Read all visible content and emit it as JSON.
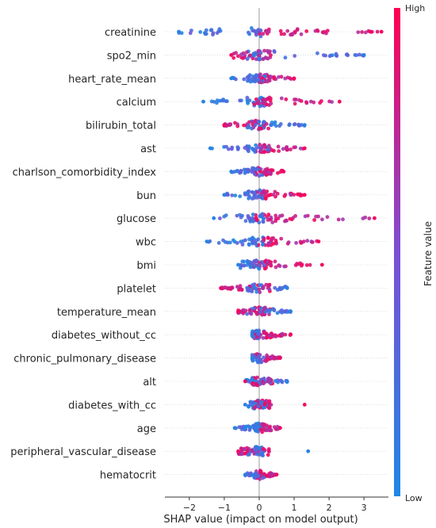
{
  "chart_data": {
    "type": "scatter",
    "xlabel": "SHAP value (impact on model output)",
    "xlim": [
      -2.7,
      3.7
    ],
    "xticks": [
      -2,
      -1,
      0,
      1,
      2,
      3
    ],
    "colorbar": {
      "label": "Feature value",
      "high": "High",
      "low": "Low",
      "low_color": "#1e88e5",
      "high_color": "#ff0052"
    },
    "features": [
      {
        "name": "creatinine",
        "min": -2.3,
        "max": 3.5,
        "low_range": [
          -2.3,
          -1.1
        ],
        "high_range": [
          0.6,
          3.5
        ],
        "skew": 0.3
      },
      {
        "name": "spo2_min",
        "min": -0.8,
        "max": 3.0,
        "low_range": [
          0.3,
          3.0
        ],
        "high_range": [
          -0.8,
          0.3
        ],
        "skew": 0.4
      },
      {
        "name": "heart_rate_mean",
        "min": -0.8,
        "max": 1.0,
        "low_range": [
          -0.8,
          0.2
        ],
        "high_range": [
          0.0,
          1.0
        ],
        "skew": 0.2
      },
      {
        "name": "calcium",
        "min": -1.6,
        "max": 2.3,
        "low_range": [
          -1.6,
          0.1
        ],
        "high_range": [
          -0.1,
          2.3
        ],
        "skew": 0.2
      },
      {
        "name": "bilirubin_total",
        "min": -1.0,
        "max": 1.3,
        "low_range": [
          0.0,
          1.3
        ],
        "high_range": [
          -1.0,
          0.0
        ],
        "skew": 0.0
      },
      {
        "name": "ast",
        "min": -1.4,
        "max": 1.3,
        "low_range": [
          -1.4,
          0.3
        ],
        "high_range": [
          0.0,
          1.3
        ],
        "skew": 0.1
      },
      {
        "name": "charlson_comorbidity_index",
        "min": -0.8,
        "max": 0.7,
        "low_range": [
          -0.8,
          -0.1
        ],
        "high_range": [
          0.1,
          0.7
        ],
        "skew": 0.0
      },
      {
        "name": "bun",
        "min": -1.0,
        "max": 1.3,
        "low_range": [
          -1.0,
          0.1
        ],
        "high_range": [
          0.1,
          1.3
        ],
        "skew": 0.0
      },
      {
        "name": "glucose",
        "min": -1.3,
        "max": 3.3,
        "low_range": [
          -1.3,
          0.1
        ],
        "high_range": [
          0.3,
          3.3
        ],
        "skew": 0.2
      },
      {
        "name": "wbc",
        "min": -1.5,
        "max": 1.7,
        "low_range": [
          -1.5,
          0.0
        ],
        "high_range": [
          0.1,
          1.7
        ],
        "skew": 0.1
      },
      {
        "name": "bmi",
        "min": -0.6,
        "max": 1.8,
        "low_range": [
          -0.6,
          0.0
        ],
        "high_range": [
          0.1,
          1.8
        ],
        "skew": 0.2
      },
      {
        "name": "platelet",
        "min": -1.1,
        "max": 0.8,
        "low_range": [
          -0.4,
          0.8
        ],
        "high_range": [
          -1.1,
          -0.2
        ],
        "skew": 0.0
      },
      {
        "name": "temperature_mean",
        "min": -0.6,
        "max": 0.9,
        "low_range": [
          0.1,
          0.9
        ],
        "high_range": [
          -0.6,
          0.2
        ],
        "skew": 0.0
      },
      {
        "name": "diabetes_without_cc",
        "min": -0.2,
        "max": 0.9,
        "low_range": [
          -0.2,
          0.0
        ],
        "high_range": [
          0.2,
          0.9
        ],
        "skew": 0.0
      },
      {
        "name": "chronic_pulmonary_disease",
        "min": -0.2,
        "max": 0.6,
        "low_range": [
          -0.2,
          0.0
        ],
        "high_range": [
          0.2,
          0.6
        ],
        "skew": 0.0
      },
      {
        "name": "alt",
        "min": -0.4,
        "max": 0.8,
        "low_range": [
          -0.4,
          0.8
        ],
        "high_range": [
          -0.2,
          0.4
        ],
        "skew": 0.0
      },
      {
        "name": "diabetes_with_cc",
        "min": -0.4,
        "max": 1.3,
        "low_range": [
          -0.2,
          0.2
        ],
        "high_range": [
          -0.1,
          0.3
        ],
        "skew": 0.0
      },
      {
        "name": "age",
        "min": -0.7,
        "max": 0.6,
        "low_range": [
          -0.7,
          0.0
        ],
        "high_range": [
          0.0,
          0.6
        ],
        "skew": 0.0
      },
      {
        "name": "peripheral_vascular_disease",
        "min": -0.6,
        "max": 1.4,
        "low_range": [
          -0.1,
          0.1
        ],
        "high_range": [
          -0.6,
          -0.1
        ],
        "skew": 0.0
      },
      {
        "name": "hematocrit",
        "min": -0.4,
        "max": 0.5,
        "low_range": [
          -0.4,
          0.0
        ],
        "high_range": [
          0.0,
          0.5
        ],
        "skew": 0.0
      }
    ]
  }
}
